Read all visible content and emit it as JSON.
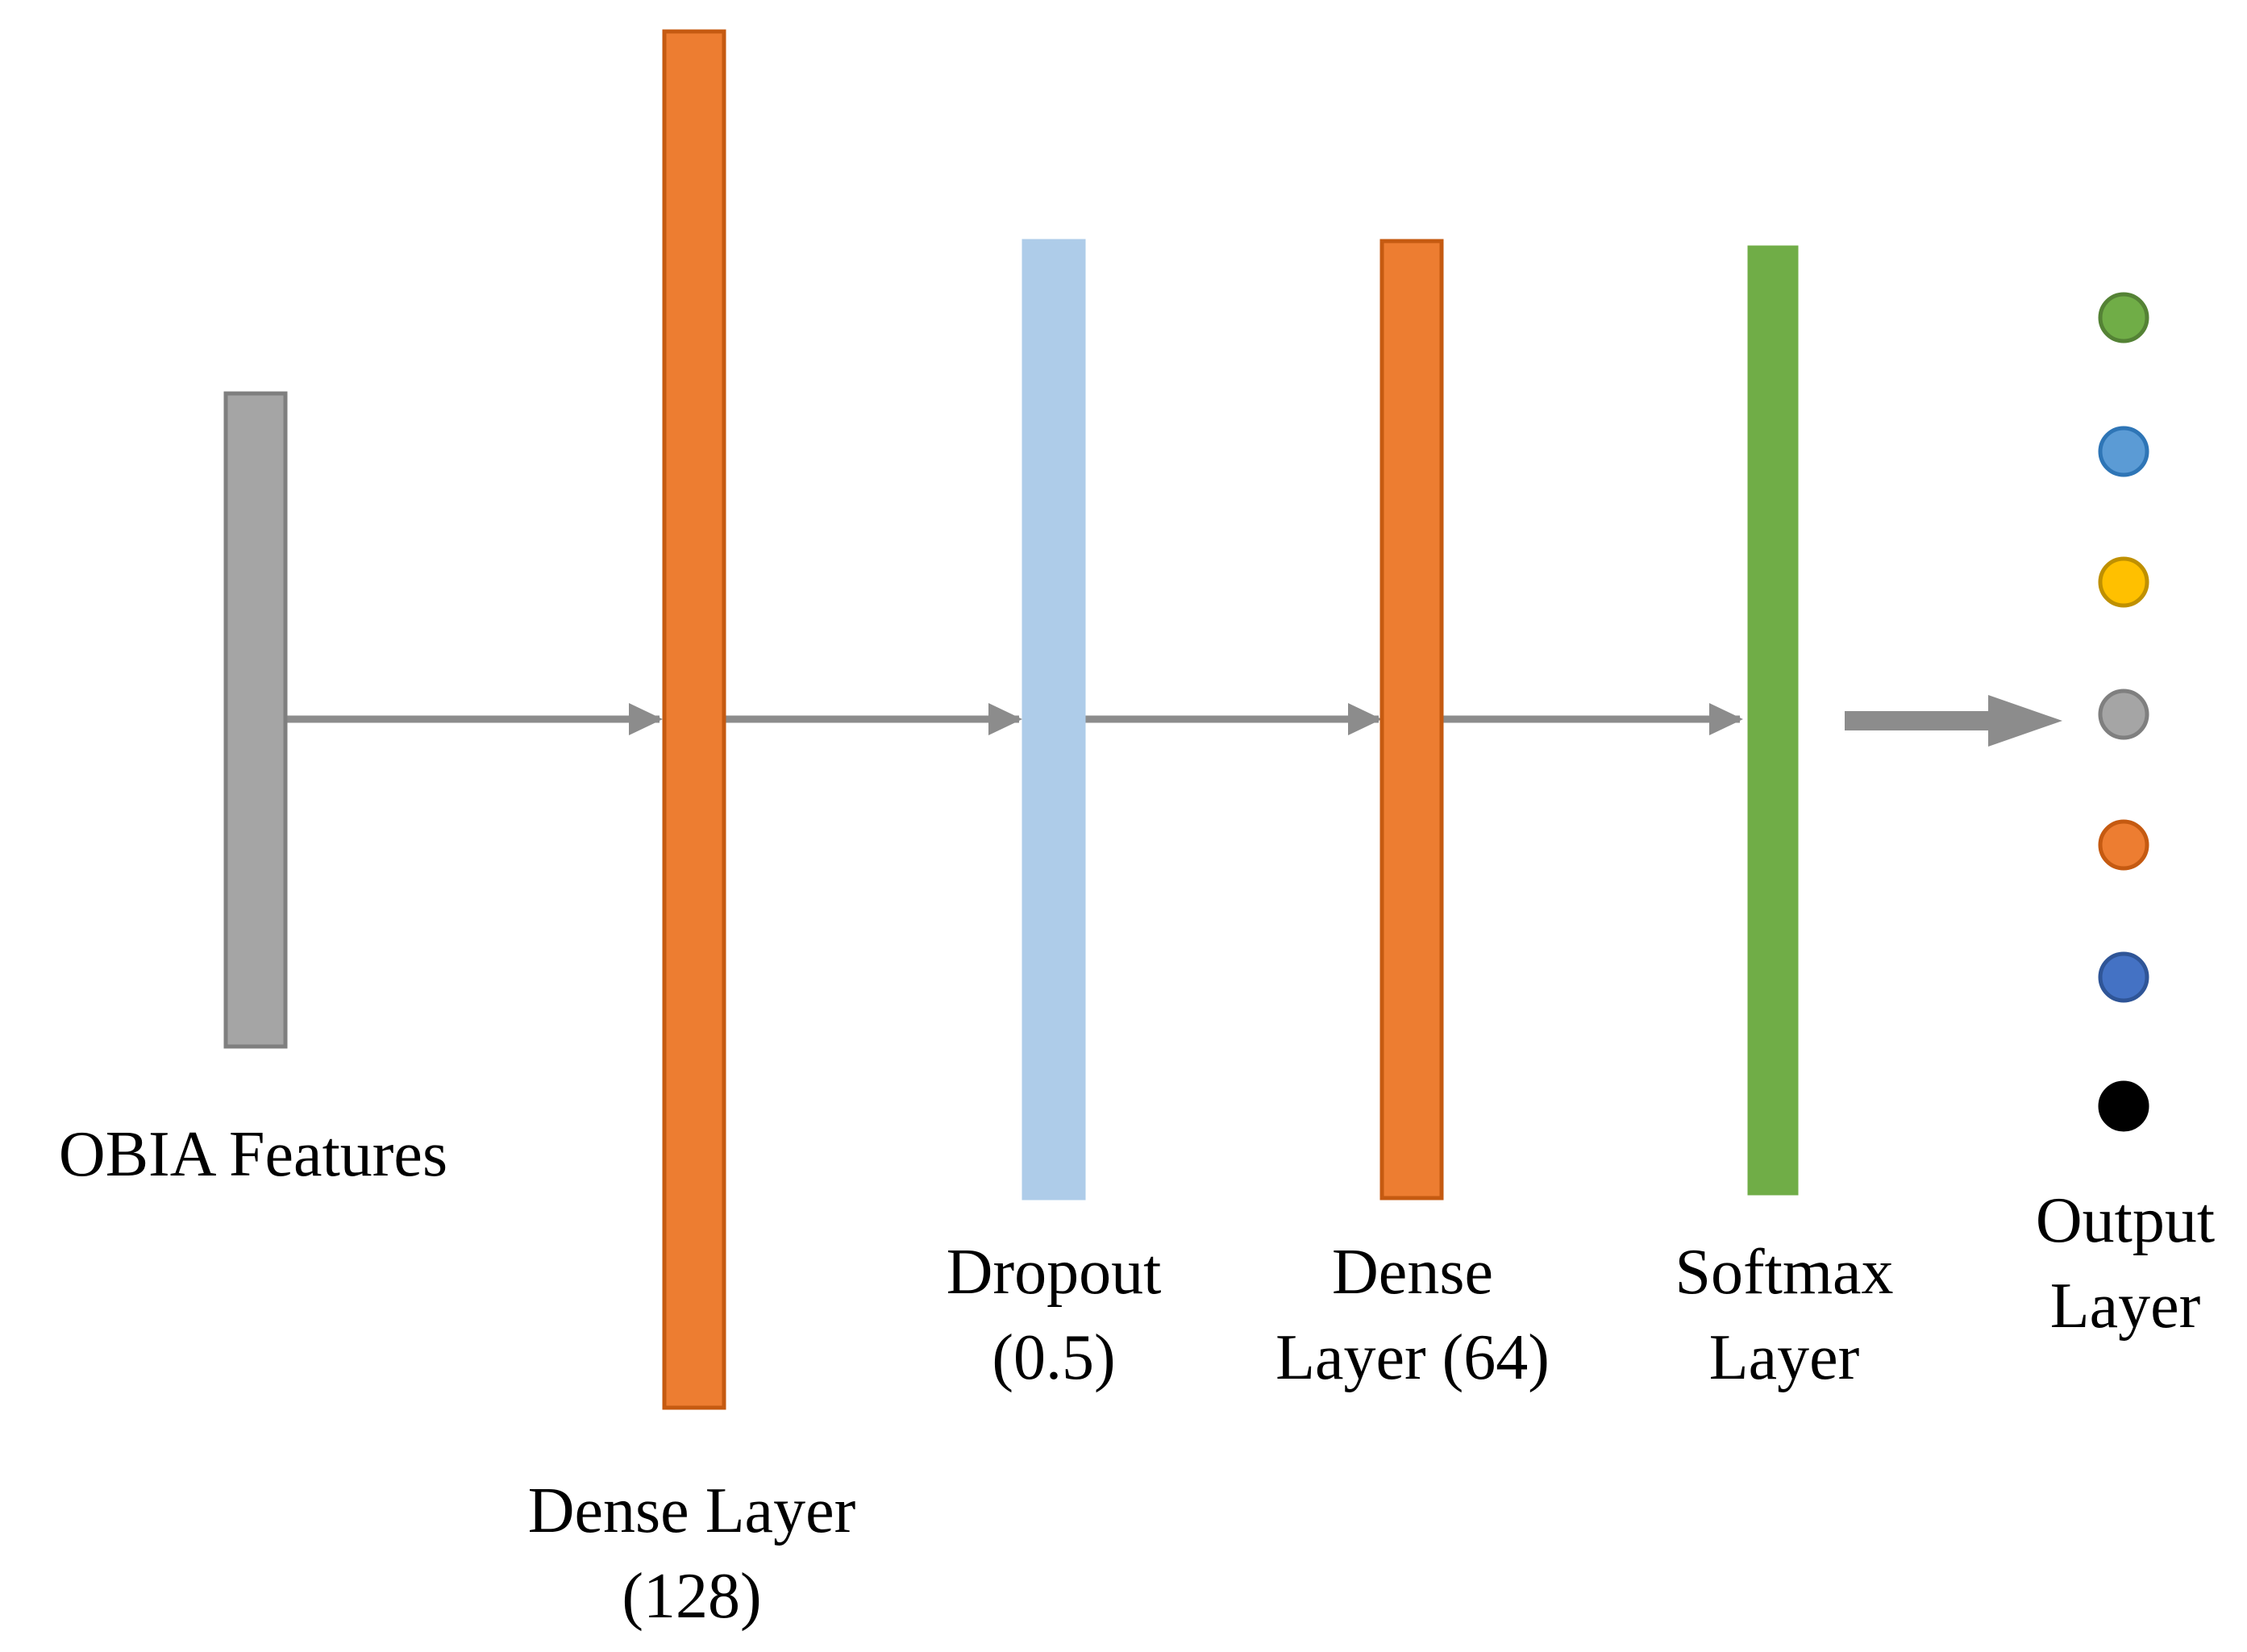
{
  "diagram": {
    "layers": [
      {
        "id": "input",
        "lines": [
          "OBIA Features"
        ],
        "color": "#a5a5a5",
        "stroke": "#7f7f7f"
      },
      {
        "id": "dense128",
        "lines": [
          "Dense Layer",
          "(128)"
        ],
        "color": "#ed7d31",
        "stroke": "#c55a11"
      },
      {
        "id": "dropout",
        "lines": [
          "Dropout",
          "(0.5)"
        ],
        "color": "#aecce9",
        "stroke": "#aecce9"
      },
      {
        "id": "dense64",
        "lines": [
          "Dense",
          "Layer (64)"
        ],
        "color": "#ed7d31",
        "stroke": "#c55a11"
      },
      {
        "id": "softmax",
        "lines": [
          "Softmax",
          "Layer"
        ],
        "color": "#70ad47",
        "stroke": "#70ad47"
      }
    ],
    "output": {
      "lines": [
        "Output",
        "Layer"
      ],
      "nodes": [
        {
          "color": "#70ad47",
          "stroke": "#548235"
        },
        {
          "color": "#5b9bd5",
          "stroke": "#2e75b6"
        },
        {
          "color": "#ffc000",
          "stroke": "#bf9000"
        },
        {
          "color": "#a5a5a5",
          "stroke": "#7f7f7f"
        },
        {
          "color": "#ed7d31",
          "stroke": "#c55a11"
        },
        {
          "color": "#4472c4",
          "stroke": "#2f5597"
        },
        {
          "color": "#000000",
          "stroke": "#000000"
        }
      ]
    },
    "arrow_color": "#8c8c8c"
  }
}
